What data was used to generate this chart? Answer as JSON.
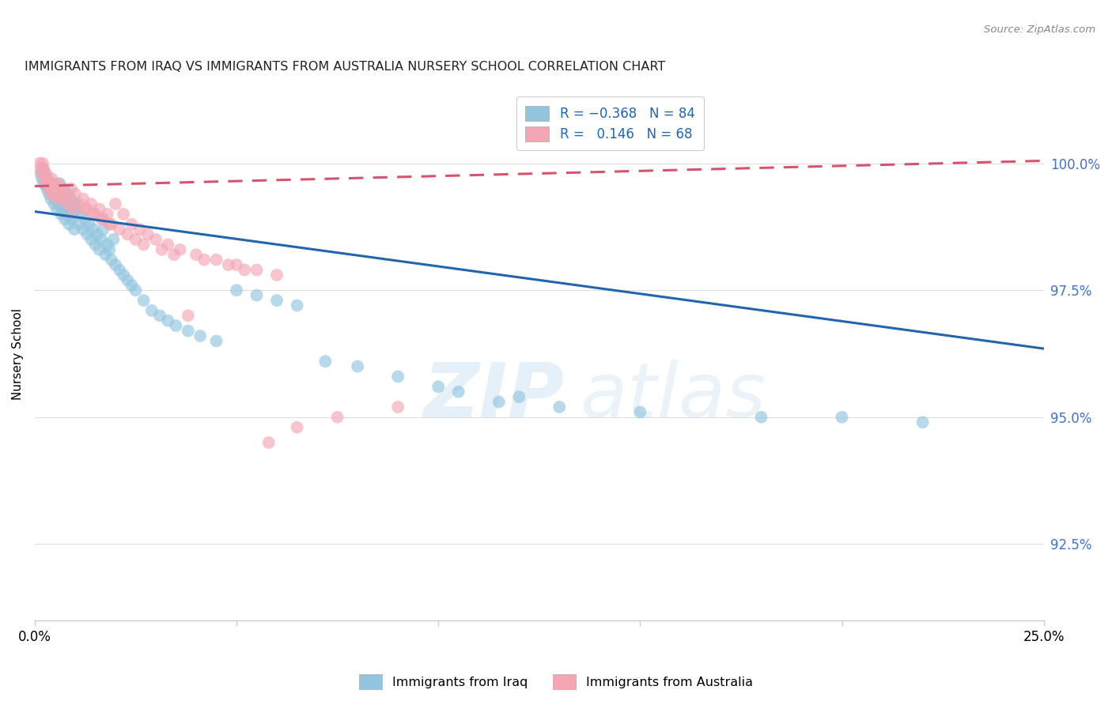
{
  "title": "IMMIGRANTS FROM IRAQ VS IMMIGRANTS FROM AUSTRALIA NURSERY SCHOOL CORRELATION CHART",
  "source": "Source: ZipAtlas.com",
  "ylabel": "Nursery School",
  "ytick_vals": [
    92.5,
    95.0,
    97.5,
    100.0
  ],
  "xrange": [
    0.0,
    25.0
  ],
  "yrange": [
    91.0,
    101.5
  ],
  "iraq_color": "#92c5de",
  "aus_color": "#f4a6b4",
  "trendline_iraq_color": "#2166ac",
  "trendline_aus_color": "#d6536d",
  "iraq_trendline_x0": 0.0,
  "iraq_trendline_y0": 99.05,
  "iraq_trendline_x1": 25.0,
  "iraq_trendline_y1": 96.35,
  "aus_trendline_x0": 0.0,
  "aus_trendline_y0": 99.55,
  "aus_trendline_x1": 25.0,
  "aus_trendline_y1": 100.05,
  "iraq_x": [
    0.15,
    0.18,
    0.2,
    0.22,
    0.25,
    0.28,
    0.3,
    0.33,
    0.35,
    0.38,
    0.4,
    0.42,
    0.45,
    0.48,
    0.5,
    0.52,
    0.55,
    0.58,
    0.6,
    0.62,
    0.65,
    0.68,
    0.7,
    0.72,
    0.75,
    0.78,
    0.8,
    0.82,
    0.85,
    0.88,
    0.9,
    0.92,
    0.95,
    0.98,
    1.0,
    1.05,
    1.1,
    1.15,
    1.2,
    1.25,
    1.3,
    1.35,
    1.4,
    1.45,
    1.5,
    1.55,
    1.6,
    1.65,
    1.7,
    1.75,
    1.8,
    1.85,
    1.9,
    1.95,
    2.0,
    2.1,
    2.2,
    2.3,
    2.4,
    2.5,
    2.7,
    2.9,
    3.1,
    3.3,
    3.5,
    3.8,
    4.1,
    4.5,
    5.0,
    5.5,
    6.0,
    6.5,
    7.2,
    8.0,
    9.0,
    10.5,
    11.5,
    13.0,
    15.0,
    18.0,
    20.0,
    22.0,
    10.0,
    12.0
  ],
  "iraq_y": [
    99.8,
    99.7,
    99.9,
    99.6,
    99.8,
    99.7,
    99.5,
    99.6,
    99.4,
    99.5,
    99.3,
    99.6,
    99.4,
    99.2,
    99.5,
    99.3,
    99.1,
    99.4,
    99.2,
    99.6,
    99.0,
    99.3,
    99.1,
    99.5,
    98.9,
    99.2,
    99.0,
    99.4,
    98.8,
    99.1,
    99.3,
    98.9,
    99.0,
    98.7,
    99.2,
    99.1,
    98.8,
    99.0,
    98.7,
    98.9,
    98.6,
    98.8,
    98.5,
    98.7,
    98.4,
    98.6,
    98.3,
    98.5,
    98.7,
    98.2,
    98.4,
    98.3,
    98.1,
    98.5,
    98.0,
    97.9,
    97.8,
    97.7,
    97.6,
    97.5,
    97.3,
    97.1,
    97.0,
    96.9,
    96.8,
    96.7,
    96.6,
    96.5,
    97.5,
    97.4,
    97.3,
    97.2,
    96.1,
    96.0,
    95.8,
    95.5,
    95.3,
    95.2,
    95.1,
    95.0,
    95.0,
    94.9,
    95.6,
    95.4
  ],
  "aus_x": [
    0.12,
    0.15,
    0.18,
    0.2,
    0.22,
    0.25,
    0.28,
    0.3,
    0.32,
    0.35,
    0.38,
    0.4,
    0.42,
    0.45,
    0.48,
    0.5,
    0.52,
    0.55,
    0.58,
    0.6,
    0.65,
    0.7,
    0.75,
    0.8,
    0.85,
    0.9,
    0.95,
    1.0,
    1.1,
    1.2,
    1.3,
    1.4,
    1.5,
    1.6,
    1.7,
    1.8,
    1.9,
    2.0,
    2.2,
    2.4,
    2.6,
    2.8,
    3.0,
    3.3,
    3.6,
    4.0,
    4.5,
    5.0,
    5.5,
    6.0,
    1.25,
    1.45,
    1.65,
    1.85,
    2.1,
    2.3,
    2.5,
    2.7,
    3.15,
    3.45,
    4.2,
    4.8,
    5.2,
    6.5,
    7.5,
    9.0,
    3.8,
    5.8
  ],
  "aus_y": [
    100.0,
    99.9,
    99.8,
    100.0,
    99.9,
    99.7,
    99.8,
    99.6,
    99.7,
    99.5,
    99.6,
    99.4,
    99.7,
    99.5,
    99.6,
    99.4,
    99.5,
    99.3,
    99.6,
    99.4,
    99.5,
    99.3,
    99.4,
    99.2,
    99.3,
    99.5,
    99.1,
    99.4,
    99.2,
    99.3,
    99.1,
    99.2,
    99.0,
    99.1,
    98.9,
    99.0,
    98.8,
    99.2,
    99.0,
    98.8,
    98.7,
    98.6,
    98.5,
    98.4,
    98.3,
    98.2,
    98.1,
    98.0,
    97.9,
    97.8,
    99.1,
    99.0,
    98.9,
    98.8,
    98.7,
    98.6,
    98.5,
    98.4,
    98.3,
    98.2,
    98.1,
    98.0,
    97.9,
    94.8,
    95.0,
    95.2,
    97.0,
    94.5
  ]
}
